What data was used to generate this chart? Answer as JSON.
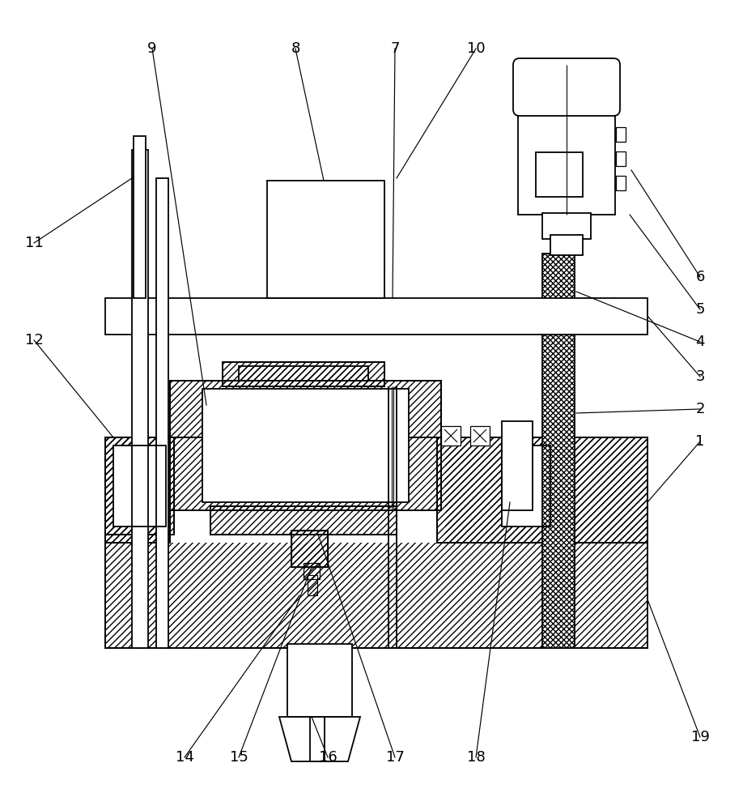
{
  "bg": "#ffffff",
  "lc": "#000000",
  "lw": 1.3,
  "fw": 9.18,
  "fh": 10.0,
  "dpi": 100
}
